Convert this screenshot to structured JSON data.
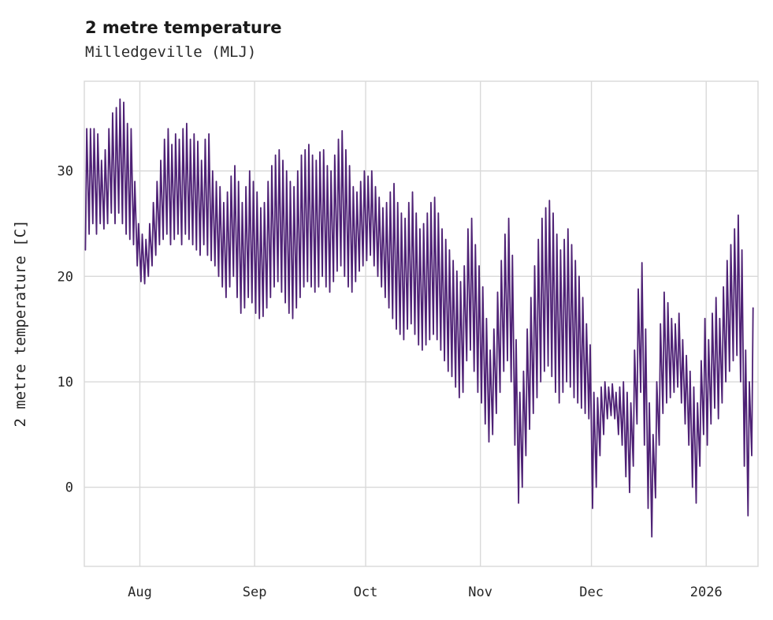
{
  "header": {
    "title": "2 metre temperature",
    "subtitle": "Milledgeville (MLJ)"
  },
  "chart_data": {
    "type": "line",
    "title": "2 metre temperature",
    "subtitle": "Milledgeville (MLJ)",
    "xlabel": "",
    "ylabel": "2 metre temperature [C]",
    "ylim": [
      -7.5,
      38.5
    ],
    "yticks": [
      0,
      10,
      20,
      30
    ],
    "xtick_labels": [
      "Aug",
      "Sep",
      "Oct",
      "Nov",
      "Dec",
      "2026"
    ],
    "xtick_days": [
      15,
      46,
      76,
      107,
      137,
      168
    ],
    "x_axis": {
      "start": "2025-07-17",
      "end": "2026-01-14",
      "unit": "days",
      "total_days": 182
    },
    "grid": true,
    "legend": "none",
    "line_color": "#4e2175",
    "grid_color": "#d9d9d9",
    "background": "#ffffff",
    "series": [
      {
        "name": "2 metre temperature [C]",
        "sampling": "daily min/max pairs approximating the diurnal cycle, day 0 = 2025-07-17",
        "daily_min": [
          22.5,
          24,
          25,
          24,
          25,
          24.5,
          25,
          26,
          25,
          26,
          25,
          24,
          23.5,
          23,
          21,
          19.5,
          19.3,
          20,
          21,
          22,
          23,
          23.5,
          24,
          23,
          23.5,
          24,
          23,
          24,
          23.5,
          23,
          22.5,
          22,
          23,
          22,
          21.5,
          21,
          20,
          19,
          18,
          19,
          20,
          18,
          16.5,
          17,
          18,
          17.5,
          16.5,
          16,
          16.2,
          17,
          18,
          19,
          19.5,
          18.5,
          17.5,
          16.5,
          16,
          17,
          18,
          19,
          19.5,
          19,
          18.5,
          19,
          20,
          19,
          18.5,
          19.5,
          20.5,
          21,
          20,
          19,
          18.5,
          19.5,
          20.5,
          21,
          21.5,
          22,
          21,
          20,
          19,
          18,
          17,
          16,
          15,
          14.5,
          14,
          15,
          15.5,
          14.5,
          13.5,
          13,
          13.5,
          14,
          14.5,
          14,
          13,
          12,
          11,
          10.5,
          9.5,
          8.5,
          9,
          12,
          13,
          11,
          9,
          8,
          6,
          4.3,
          5,
          7,
          9,
          11,
          12,
          10,
          4,
          -1.5,
          0,
          3,
          5.5,
          7,
          8.5,
          10,
          11,
          11.5,
          10.5,
          9,
          8,
          9,
          10,
          9.5,
          8.5,
          8,
          7.5,
          7,
          6.5,
          -2,
          0,
          3,
          5,
          6.5,
          6.8,
          6.5,
          5,
          4,
          1,
          -0.5,
          2,
          6,
          9,
          4,
          -2,
          -4.7,
          -1,
          4,
          7,
          8,
          8.5,
          9,
          9.5,
          8,
          6,
          4,
          0,
          -1.5,
          2,
          5,
          4,
          6,
          7.5,
          6.5,
          8,
          10,
          11,
          12,
          12.5,
          10,
          2,
          -2.7,
          3
        ],
        "daily_max": [
          34,
          34,
          34,
          33.5,
          31,
          32,
          34,
          35.5,
          36,
          36.8,
          36.5,
          34.5,
          34,
          29,
          25,
          24,
          23.5,
          25,
          27,
          29,
          31,
          33,
          34,
          32.5,
          33.5,
          33,
          34,
          34.5,
          33,
          33.5,
          32.8,
          31,
          33,
          33.5,
          30,
          29,
          28.5,
          27,
          28,
          29.5,
          30.5,
          29,
          27,
          28.5,
          30,
          29,
          28,
          26.5,
          27,
          29,
          30.5,
          31.5,
          32,
          31,
          30,
          29,
          28.5,
          30,
          31.5,
          32,
          32.5,
          31.5,
          31,
          31.8,
          32,
          30.5,
          30,
          31.5,
          33,
          33.8,
          32,
          30.5,
          28.5,
          28,
          29,
          30,
          29.5,
          30,
          28.5,
          27.5,
          26.5,
          27,
          28,
          28.8,
          27,
          26,
          25.5,
          27,
          28,
          26,
          24.5,
          25,
          26,
          27,
          27.5,
          26,
          24.5,
          23.5,
          22.5,
          21.5,
          20.5,
          19.5,
          21,
          24.5,
          25.5,
          23,
          21,
          19,
          16,
          13,
          15,
          18.5,
          21.5,
          24,
          25.5,
          22,
          14,
          9,
          11,
          15,
          18,
          21,
          23.5,
          25.5,
          26.5,
          27.2,
          26,
          24,
          22.5,
          23.5,
          24.5,
          23,
          21.5,
          20,
          18,
          15.5,
          13.5,
          9,
          8.5,
          9.5,
          10,
          9.5,
          9.8,
          9,
          9.5,
          10,
          9,
          8,
          13,
          18.8,
          21.3,
          15,
          8,
          5,
          10,
          15.5,
          18.5,
          17.5,
          16,
          15.5,
          16.5,
          14,
          12.5,
          11,
          9.5,
          8,
          12,
          16,
          14,
          16.5,
          18,
          16,
          19,
          21.5,
          23,
          24.5,
          25.8,
          22.5,
          13,
          10,
          17
        ]
      }
    ]
  }
}
